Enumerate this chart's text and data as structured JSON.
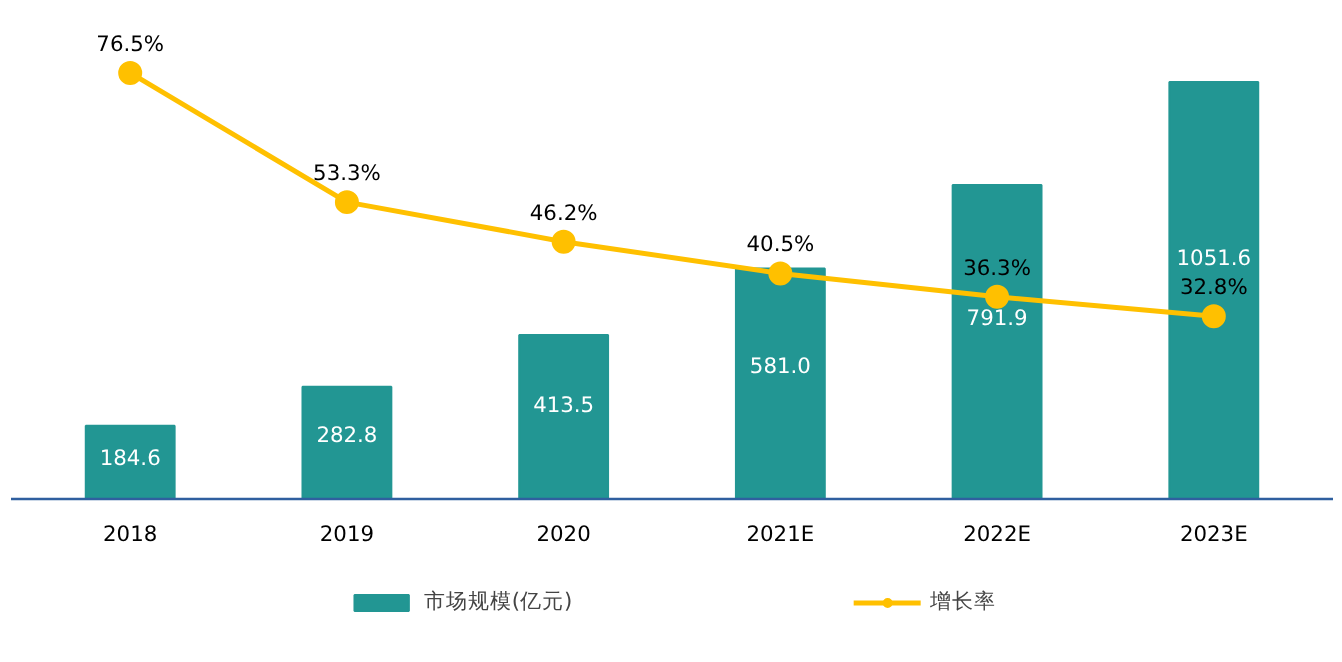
{
  "chart_data": {
    "type": "bar",
    "categories": [
      "2018",
      "2019",
      "2020",
      "2021E",
      "2022E",
      "2023E"
    ],
    "series": [
      {
        "name": "市场规模(亿元)",
        "color": "#229693",
        "values": [
          184.6,
          282.8,
          413.5,
          581.0,
          791.9,
          1051.6
        ],
        "value_labels": [
          "184.6",
          "282.8",
          "413.5",
          "581.0",
          "791.9",
          "1051.6"
        ]
      },
      {
        "name": "增长率",
        "type": "line",
        "axis": "y2",
        "color": "#ffc000",
        "values": [
          76.5,
          53.3,
          46.2,
          40.5,
          36.3,
          32.8
        ],
        "value_labels": [
          "76.5%",
          "53.3%",
          "46.2%",
          "40.5%",
          "36.3%",
          "32.8%"
        ]
      }
    ],
    "marker": "circle",
    "line_style": "solid",
    "legend": "bottom",
    "tick_labels": "x"
  }
}
